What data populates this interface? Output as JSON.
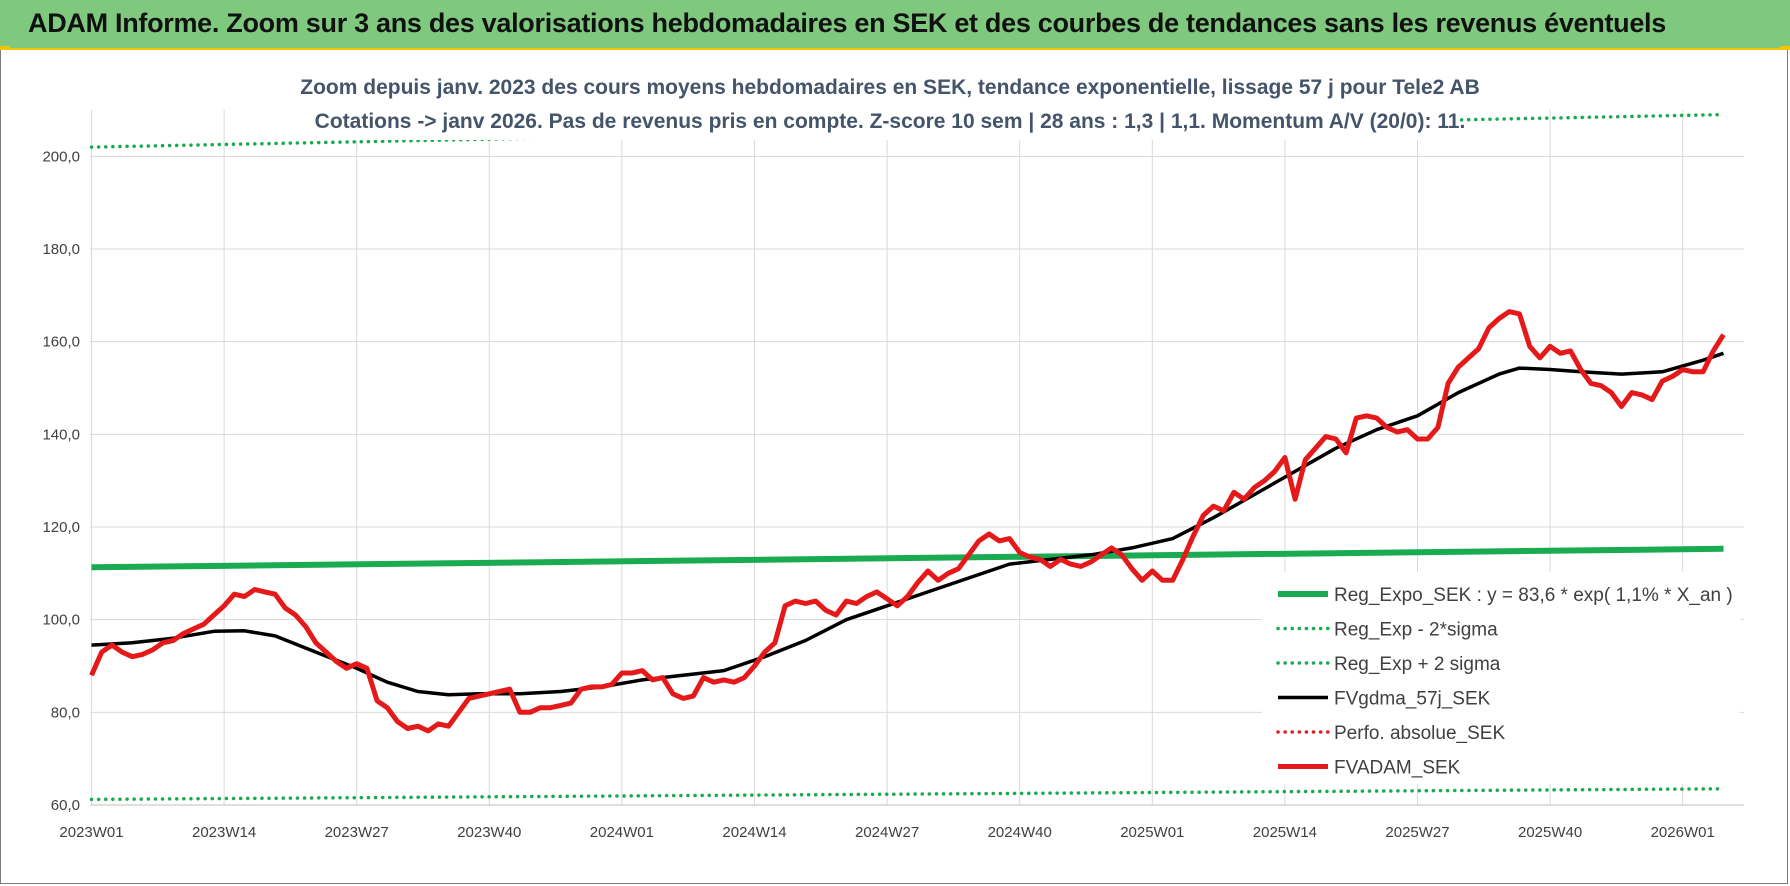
{
  "banner": {
    "title": "ADAM Informe. Zoom sur 3 ans des valorisations hebdomadaires en SEK et des courbes de tendances sans les revenus éventuels"
  },
  "chart_data": {
    "type": "line",
    "title_lines": [
      "Zoom depuis janv. 2023 des cours moyens hebdomadaires en SEK, tendance exponentielle, lissage 57 j pour Tele2 AB",
      "Cotations -> janv 2026. Pas de revenus pris en compte. Z-score 10 sem | 28 ans : 1,3 | 1,1. Momentum A/V (20/0): 11."
    ],
    "xlabel": "",
    "ylabel": "",
    "ylim": [
      60,
      210
    ],
    "y_ticks": [
      "60,0",
      "80,0",
      "100,0",
      "120,0",
      "140,0",
      "160,0",
      "180,0",
      "200,0"
    ],
    "y_tick_values": [
      60,
      80,
      100,
      120,
      140,
      160,
      180,
      200
    ],
    "x_tick_labels": [
      "2023W01",
      "2023W14",
      "2023W27",
      "2023W40",
      "2024W01",
      "2024W14",
      "2024W27",
      "2024W40",
      "2025W01",
      "2025W14",
      "2025W27",
      "2025W40",
      "2026W01"
    ],
    "x_tick_weeks": [
      0,
      13,
      26,
      39,
      52,
      65,
      78,
      91,
      104,
      117,
      130,
      143,
      156
    ],
    "x_range_weeks": [
      0,
      160
    ],
    "grid": true,
    "legend_position": "bottom-right",
    "series": [
      {
        "name": "Reg_Expo_SEK : y = 83,6 * exp( 1,1% * X_an )",
        "style": "solid-thick",
        "color": "#1aaa50",
        "x": [
          0,
          160
        ],
        "y": [
          111.3,
          115.3
        ]
      },
      {
        "name": "Reg_Exp - 2*sigma",
        "style": "dotted",
        "color": "#1aaa50",
        "x": [
          0,
          160
        ],
        "y": [
          61.2,
          63.5
        ]
      },
      {
        "name": "Reg_Exp + 2 sigma",
        "style": "dotted",
        "color": "#1aaa50",
        "x": [
          0,
          160
        ],
        "y": [
          202,
          209
        ]
      },
      {
        "name": "FVgdma_57j_SEK",
        "style": "solid",
        "color": "#000000",
        "x": [
          0,
          4,
          8,
          12,
          15,
          18,
          22,
          26,
          29,
          32,
          35,
          38,
          42,
          46,
          50,
          54,
          58,
          62,
          66,
          70,
          74,
          78,
          82,
          86,
          90,
          94,
          98,
          102,
          106,
          110,
          114,
          118,
          122,
          126,
          130,
          134,
          138,
          140,
          143,
          146,
          150,
          154,
          158,
          160
        ],
        "y": [
          94.5,
          95,
          96,
          97.5,
          97.6,
          96.5,
          93,
          89.5,
          86.5,
          84.5,
          83.8,
          84,
          84,
          84.5,
          85.5,
          87,
          88,
          89,
          92,
          95.5,
          100,
          103,
          106,
          109,
          112,
          113,
          114,
          115.5,
          117.5,
          122,
          127,
          132,
          137,
          141,
          144,
          149,
          153,
          154.3,
          154,
          153.5,
          153,
          153.5,
          156,
          157.5
        ]
      },
      {
        "name": "Perfo. absolue_SEK",
        "style": "dotted",
        "color": "#e02020",
        "x": [],
        "y": []
      },
      {
        "name": "FVADAM_SEK",
        "style": "solid-thick",
        "color": "#e51919",
        "x": [
          0,
          1,
          2,
          3,
          4,
          5,
          6,
          7,
          8,
          9,
          10,
          11,
          12,
          13,
          14,
          15,
          16,
          17,
          18,
          19,
          20,
          21,
          22,
          23,
          24,
          25,
          26,
          27,
          28,
          29,
          30,
          31,
          32,
          33,
          34,
          35,
          36,
          37,
          38,
          39,
          40,
          41,
          42,
          43,
          44,
          45,
          46,
          47,
          48,
          49,
          50,
          51,
          52,
          53,
          54,
          55,
          56,
          57,
          58,
          59,
          60,
          61,
          62,
          63,
          64,
          65,
          66,
          67,
          68,
          69,
          70,
          71,
          72,
          73,
          74,
          75,
          76,
          77,
          78,
          79,
          80,
          81,
          82,
          83,
          84,
          85,
          86,
          87,
          88,
          89,
          90,
          91,
          92,
          93,
          94,
          95,
          96,
          97,
          98,
          99,
          100,
          101,
          102,
          103,
          104,
          105,
          106,
          107,
          108,
          109,
          110,
          111,
          112,
          113,
          114,
          115,
          116,
          117,
          118,
          119,
          120,
          121,
          122,
          123,
          124,
          125,
          126,
          127,
          128,
          129,
          130,
          131,
          132,
          133,
          134,
          135,
          136,
          137,
          138,
          139,
          140,
          141,
          142,
          143,
          144,
          145,
          146,
          147,
          148,
          149,
          150,
          151,
          152,
          153,
          154,
          155,
          156,
          157,
          158,
          159,
          160
        ],
        "y": [
          88,
          93,
          94.5,
          93,
          92,
          92.5,
          93.5,
          95,
          95.5,
          97,
          98,
          99,
          101,
          103,
          105.5,
          105,
          106.5,
          106,
          105.5,
          102.5,
          101,
          98.5,
          95,
          93,
          91,
          89.5,
          90.5,
          89.5,
          82.5,
          81,
          78,
          76.5,
          77,
          76,
          77.5,
          77,
          80,
          83,
          83.5,
          84,
          84.5,
          85,
          80,
          80,
          81,
          81,
          81.5,
          82,
          85,
          85.5,
          85.5,
          86,
          88.5,
          88.5,
          89,
          87,
          87.5,
          84,
          83,
          83.5,
          87.5,
          86.5,
          87,
          86.5,
          87.5,
          90,
          93,
          95,
          103,
          104,
          103.5,
          104,
          102,
          101,
          104,
          103.5,
          105,
          106,
          104.5,
          103,
          105,
          108,
          110.5,
          108.5,
          110,
          111,
          114,
          117,
          118.5,
          117,
          117.5,
          114.5,
          113.5,
          113,
          111.5,
          113,
          112,
          111.5,
          112.5,
          114,
          115.5,
          114,
          111,
          108.5,
          110.5,
          108.5,
          108.5,
          113,
          118,
          122.5,
          124.5,
          123.5,
          127.5,
          126,
          128.5,
          130,
          132,
          135,
          126,
          134.5,
          137,
          139.5,
          139,
          136,
          143.5,
          144,
          143.5,
          141.5,
          140.5,
          141,
          139,
          139,
          141.5,
          151,
          154.5,
          156.5,
          158.5,
          163,
          165,
          166.5,
          166,
          159,
          156.5,
          159,
          157.5,
          158,
          154,
          151,
          150.5,
          149,
          146,
          149,
          148.5,
          147.5,
          151.5,
          152.5,
          154,
          153.5,
          153.5,
          158,
          161.5
        ]
      }
    ]
  }
}
